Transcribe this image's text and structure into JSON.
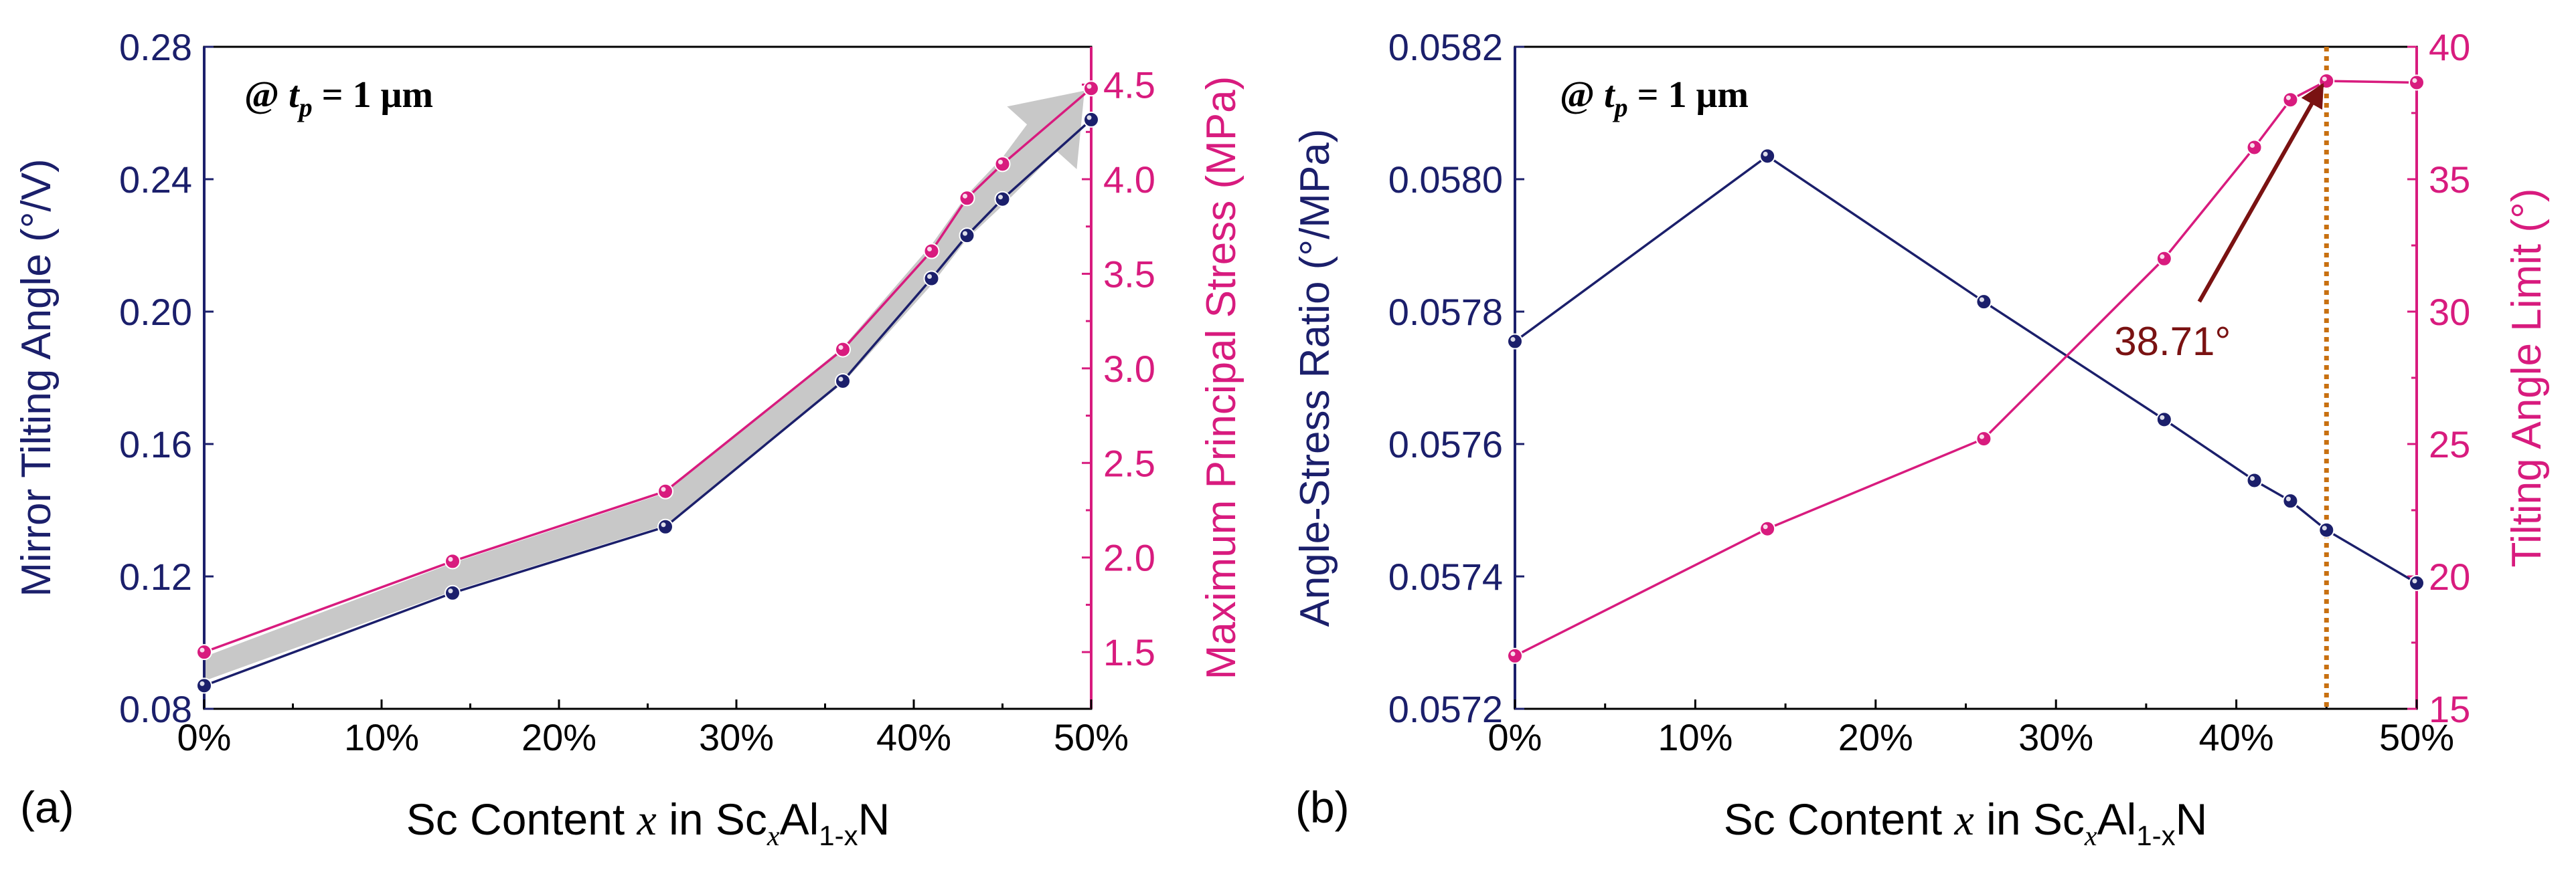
{
  "chart_data": [
    {
      "panel_label": "(a)",
      "type": "line",
      "annotation": {
        "prefix": "@",
        "var": "t",
        "sub": "p",
        "rest": "= 1 μm"
      },
      "xlabel": {
        "pre": "Sc Content ",
        "var": "x",
        "mid": " in Sc",
        "sub1": "x",
        "al": "Al",
        "sub2": "1-x",
        "post": "N"
      },
      "xlim": [
        0,
        50
      ],
      "xticks": [
        "0%",
        "10%",
        "20%",
        "30%",
        "40%",
        "50%"
      ],
      "ylabel_left": "Mirror Tilting Angle (°/V)",
      "ylim_left": [
        0.08,
        0.28
      ],
      "yticks_left": [
        "0.08",
        "0.12",
        "0.16",
        "0.20",
        "0.24",
        "0.28"
      ],
      "ylabel_right": "Maximum Principal Stress (MPa)",
      "ylim_right": [
        1.2,
        4.7
      ],
      "yticks_right": [
        "1.5",
        "2.0",
        "2.5",
        "3.0",
        "3.5",
        "4.0",
        "4.5"
      ],
      "series": [
        {
          "name": "Mirror Tilting Angle",
          "axis": "left",
          "color": "#1b1f6b",
          "x": [
            0,
            14,
            26,
            36,
            41,
            43,
            45,
            50
          ],
          "values": [
            0.087,
            0.115,
            0.135,
            0.179,
            0.21,
            0.223,
            0.234,
            0.258
          ]
        },
        {
          "name": "Maximum Principal Stress",
          "axis": "right",
          "color": "#d81b7e",
          "x": [
            0,
            14,
            26,
            36,
            41,
            43,
            45,
            50
          ],
          "values": [
            1.5,
            1.98,
            2.35,
            3.1,
            3.62,
            3.9,
            4.08,
            4.48
          ]
        }
      ],
      "trend_arrow": true
    },
    {
      "panel_label": "(b)",
      "type": "line",
      "annotation": {
        "prefix": "@",
        "var": "t",
        "sub": "p",
        "rest": "= 1 μm"
      },
      "xlabel": {
        "pre": "Sc Content ",
        "var": "x",
        "mid": " in Sc",
        "sub1": "x",
        "al": "Al",
        "sub2": "1-x",
        "post": "N"
      },
      "xlim": [
        0,
        50
      ],
      "xticks": [
        "0%",
        "10%",
        "20%",
        "30%",
        "40%",
        "50%"
      ],
      "ylabel_left": "Angle-Stress Ratio (°/MPa)",
      "ylim_left": [
        0.0572,
        0.0582
      ],
      "yticks_left": [
        "0.0572",
        "0.0574",
        "0.0576",
        "0.0578",
        "0.0580",
        "0.0582"
      ],
      "ylabel_right": "Tilting Angle Limit (°)",
      "ylim_right": [
        15,
        40
      ],
      "yticks_right": [
        "15",
        "20",
        "25",
        "30",
        "35",
        "40"
      ],
      "series": [
        {
          "name": "Angle-Stress Ratio",
          "axis": "left",
          "color": "#1b1f6b",
          "x": [
            0,
            14,
            26,
            36,
            41,
            43,
            45,
            50
          ],
          "values": [
            0.057755,
            0.058035,
            0.057815,
            0.057637,
            0.057545,
            0.057514,
            0.05747,
            0.05739
          ]
        },
        {
          "name": "Tilting Angle Limit",
          "axis": "right",
          "color": "#d81b7e",
          "x": [
            0,
            14,
            26,
            36,
            41,
            43,
            45,
            50
          ],
          "values": [
            17.0,
            21.8,
            25.2,
            32.0,
            36.2,
            38.0,
            38.71,
            38.65
          ]
        }
      ],
      "vline_x": 45,
      "callout": {
        "text": "38.71°",
        "x": 45,
        "y": 38.71
      }
    }
  ]
}
